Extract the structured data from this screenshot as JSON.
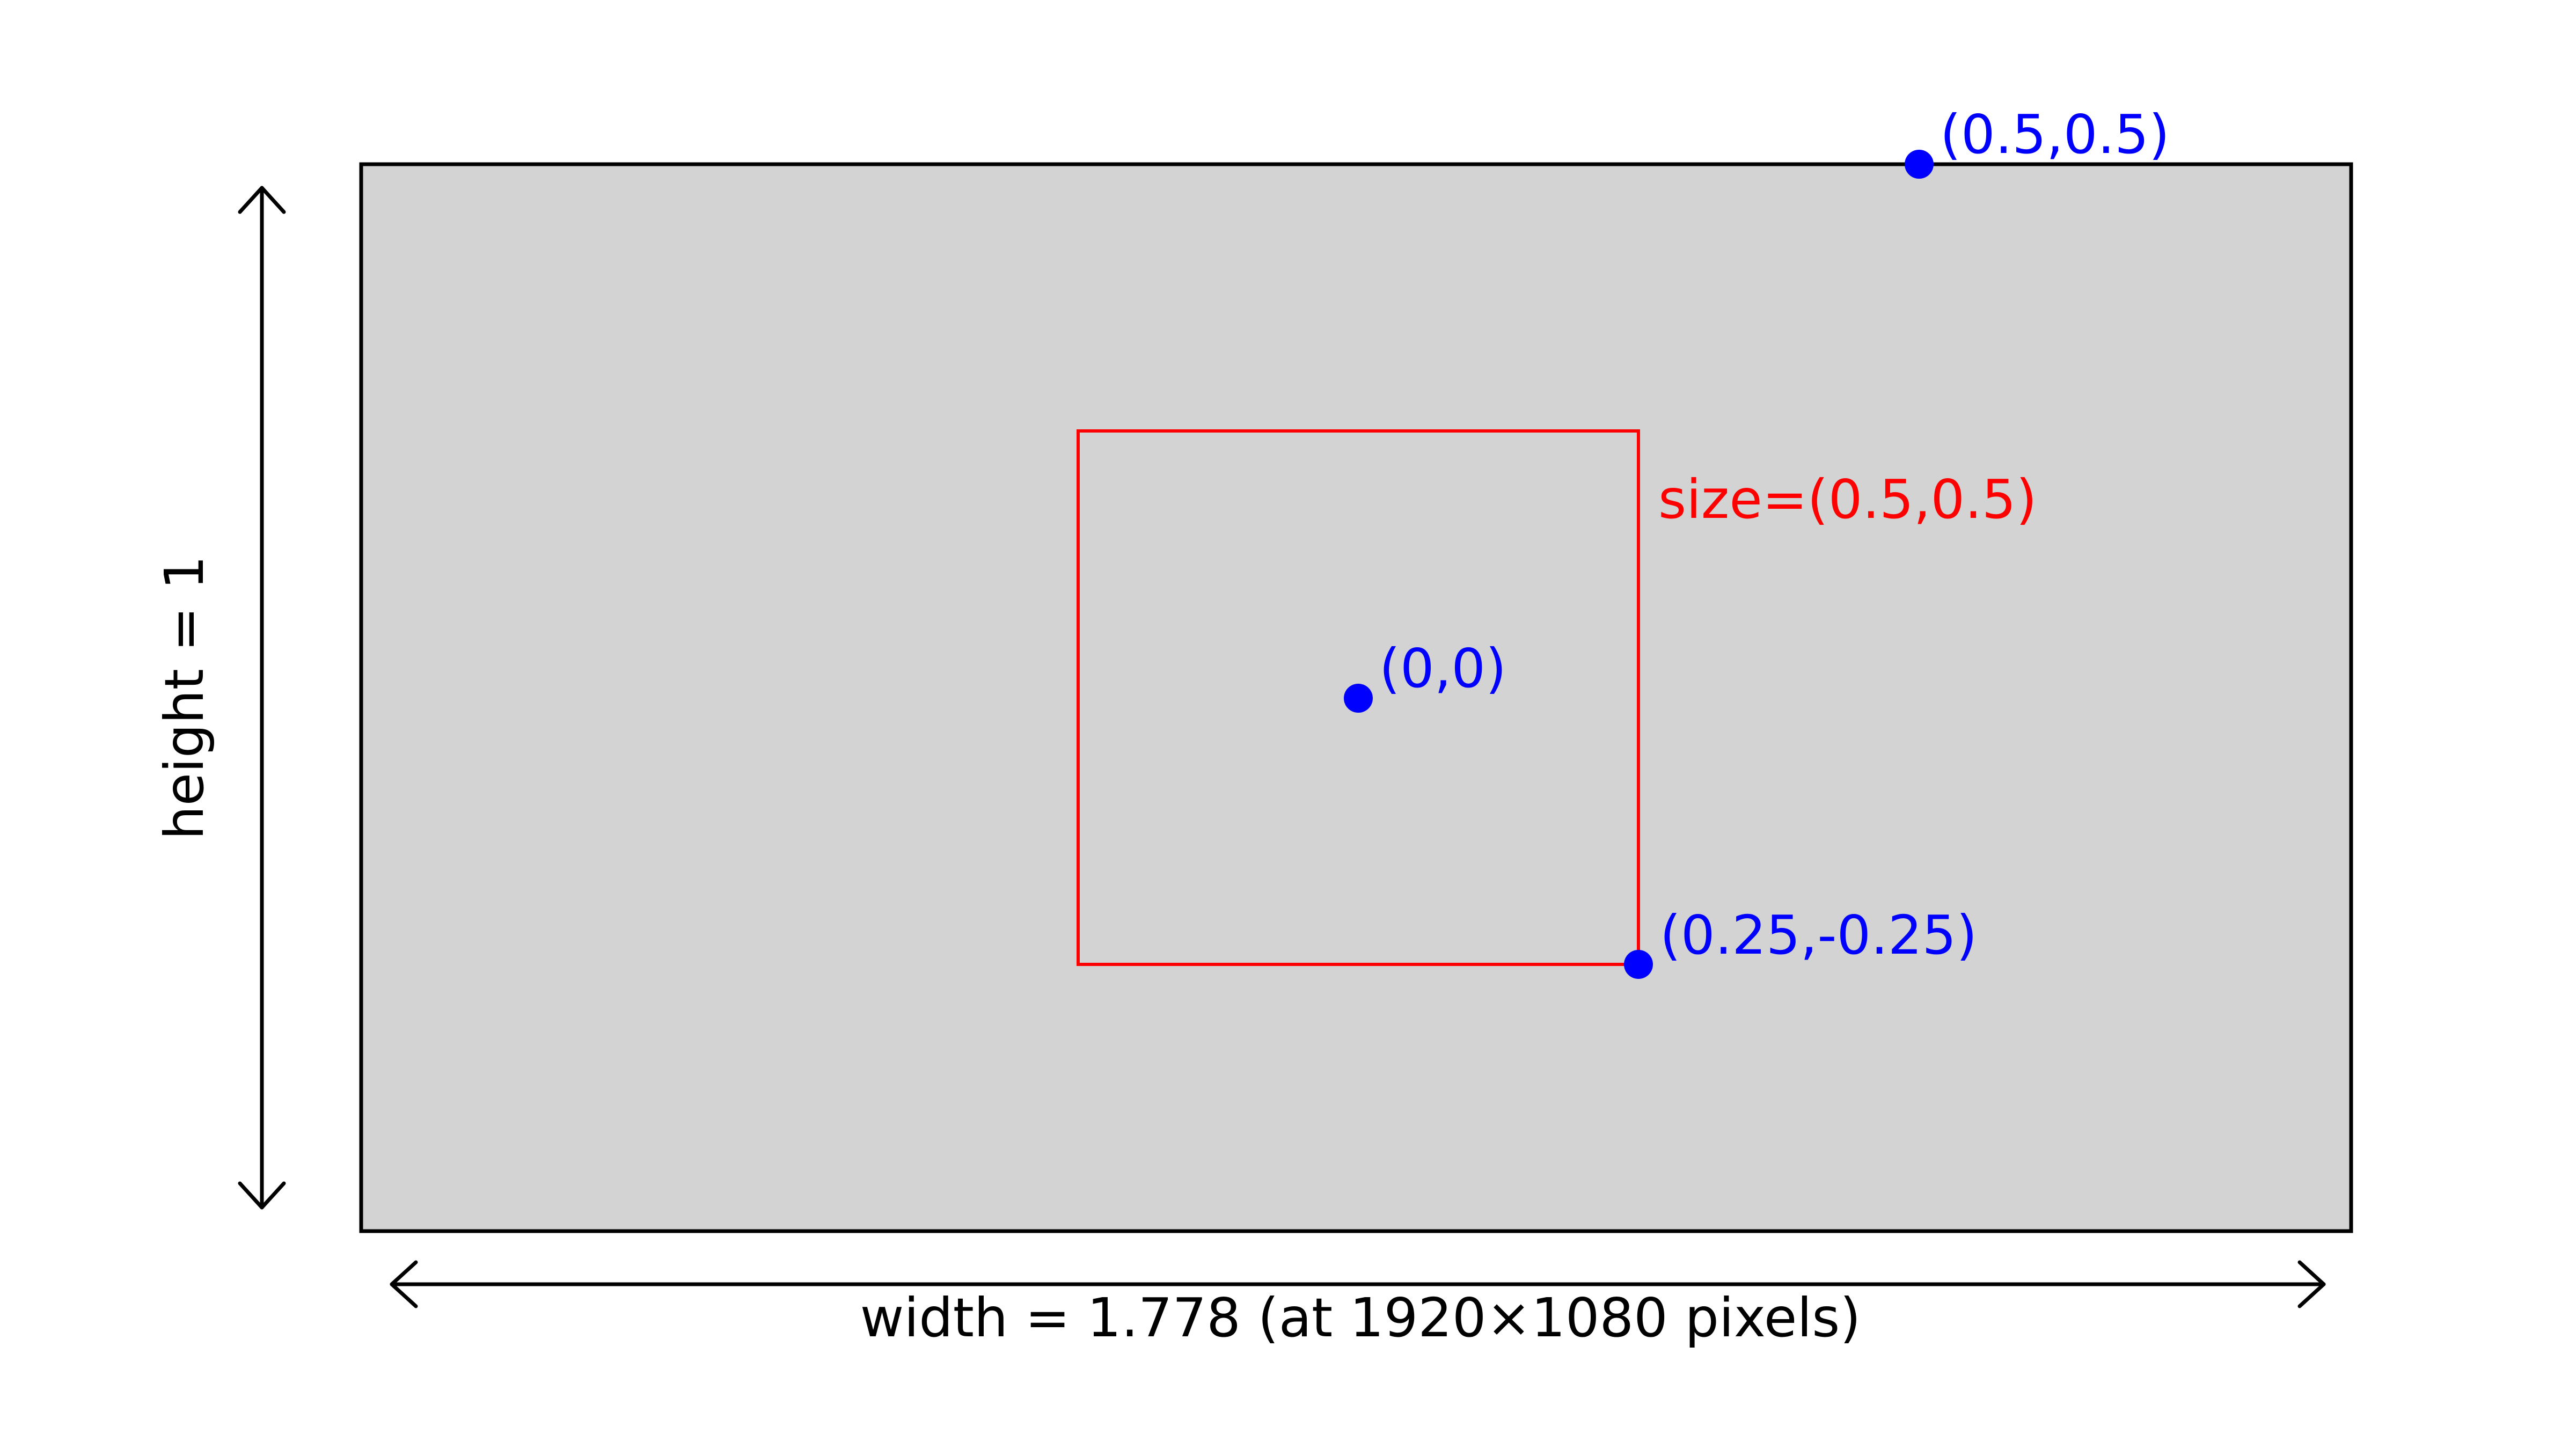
{
  "colors": {
    "canvas_fill": "#d3d3d3",
    "canvas_stroke": "#000000",
    "box_stroke": "#ff0000",
    "point": "#0000ff",
    "text": "#000000",
    "size_text": "#ff0000",
    "point_text": "#0000ff"
  },
  "labels": {
    "height": "height = 1",
    "width": "width = 1.778 (at 1920×1080 pixels)",
    "size": "size=(0.5,0.5)"
  },
  "points": [
    {
      "name": "center",
      "label": "(0,0)"
    },
    {
      "name": "corner",
      "label": "(0.25,-0.25)"
    },
    {
      "name": "top-edge",
      "label": "(0.5,0.5)"
    }
  ]
}
